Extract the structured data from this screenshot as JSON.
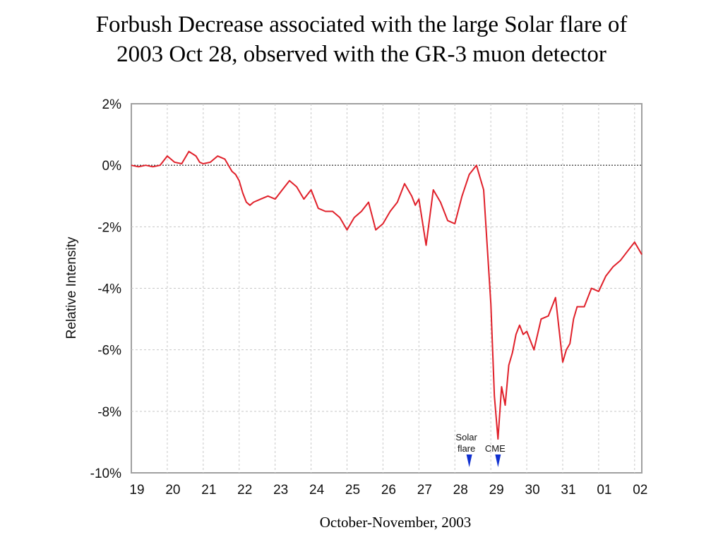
{
  "title": {
    "line1": "Forbush Decrease associated with the large Solar flare of",
    "line2": "2003 Oct 28, observed with the GR-3 muon detector"
  },
  "caption": "October-November, 2003",
  "colors": {
    "series": "#e0202a",
    "grid": "#c8c8c8",
    "zero_line": "#000000",
    "marker": "#1030d0"
  },
  "chart_data": {
    "type": "line",
    "title": "Forbush Decrease associated with the large Solar flare of 2003 Oct 28, observed with the GR-3 muon detector",
    "xlabel": "October-November, 2003",
    "ylabel": "Relative Intensity",
    "ylim": [
      -10,
      2
    ],
    "xlim": [
      0,
      14.2
    ],
    "x_tick_labels": [
      "19",
      "20",
      "21",
      "22",
      "23",
      "24",
      "25",
      "26",
      "27",
      "28",
      "29",
      "30",
      "31",
      "01",
      "02"
    ],
    "y_tick_labels": [
      "2%",
      "0%",
      "-2%",
      "-4%",
      "-6%",
      "-8%",
      "-10%"
    ],
    "y_ticks": [
      2,
      0,
      -2,
      -4,
      -6,
      -8,
      -10
    ],
    "grid": true,
    "zero_reference_line": true,
    "annotations": [
      {
        "label_lines": [
          "Solar",
          "flare"
        ],
        "x": 9.4
      },
      {
        "label_lines": [
          "CME"
        ],
        "x": 10.2
      }
    ],
    "series": [
      {
        "x": [
          0.0,
          0.2,
          0.4,
          0.6,
          0.8,
          1.0,
          1.1,
          1.2,
          1.4,
          1.6,
          1.8,
          1.9,
          2.0,
          2.2,
          2.4,
          2.6,
          2.8,
          2.9,
          3.0,
          3.1,
          3.2,
          3.3,
          3.4,
          3.6,
          3.8,
          4.0,
          4.2,
          4.4,
          4.6,
          4.8,
          5.0,
          5.2,
          5.4,
          5.6,
          5.8,
          5.9,
          6.0,
          6.2,
          6.4,
          6.6,
          6.8,
          7.0,
          7.2,
          7.4,
          7.6,
          7.8,
          7.9,
          8.0,
          8.2,
          8.4,
          8.6,
          8.8,
          9.0,
          9.2,
          9.4,
          9.6,
          9.8,
          10.0,
          10.1,
          10.2,
          10.3,
          10.4,
          10.5,
          10.6,
          10.7,
          10.8,
          10.9,
          11.0,
          11.2,
          11.4,
          11.6,
          11.8,
          12.0,
          12.1,
          12.2,
          12.3,
          12.4,
          12.6,
          12.8,
          13.0,
          13.2,
          13.4,
          13.6,
          13.8,
          14.0,
          14.2
        ],
        "y": [
          0.0,
          -0.05,
          0.0,
          -0.05,
          0.0,
          0.3,
          0.2,
          0.1,
          0.05,
          0.45,
          0.3,
          0.1,
          0.05,
          0.1,
          0.3,
          0.2,
          -0.2,
          -0.3,
          -0.5,
          -0.9,
          -1.2,
          -1.3,
          -1.2,
          -1.1,
          -1.0,
          -1.1,
          -0.8,
          -0.5,
          -0.7,
          -1.1,
          -0.8,
          -1.4,
          -1.5,
          -1.5,
          -1.7,
          -1.9,
          -2.1,
          -1.7,
          -1.5,
          -1.2,
          -2.1,
          -1.9,
          -1.5,
          -1.2,
          -0.6,
          -1.0,
          -1.3,
          -1.1,
          -2.6,
          -0.8,
          -1.2,
          -1.8,
          -1.9,
          -1.0,
          -0.3,
          0.0,
          -0.8,
          -4.5,
          -7.5,
          -8.9,
          -7.2,
          -7.8,
          -6.5,
          -6.1,
          -5.5,
          -5.2,
          -5.5,
          -5.4,
          -6.0,
          -5.0,
          -4.9,
          -4.3,
          -6.4,
          -6.0,
          -5.8,
          -5.0,
          -4.6,
          -4.6,
          -4.0,
          -4.1,
          -3.6,
          -3.3,
          -3.1,
          -2.8,
          -2.5,
          -2.9
        ]
      }
    ]
  }
}
